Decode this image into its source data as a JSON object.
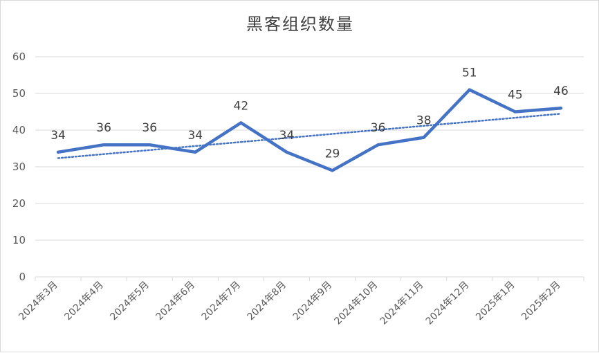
{
  "chart_data": {
    "type": "line",
    "title": "黑客组织数量",
    "xlabel": "",
    "ylabel": "",
    "categories": [
      "2024年3月",
      "2024年4月",
      "2024年5月",
      "2024年6月",
      "2024年7月",
      "2024年8月",
      "2024年9月",
      "2024年10月",
      "2024年11月",
      "2024年12月",
      "2025年1月",
      "2025年2月"
    ],
    "series": [
      {
        "values": [
          34,
          36,
          36,
          34,
          42,
          34,
          29,
          36,
          38,
          51,
          45,
          46
        ],
        "color": "#4472c4"
      }
    ],
    "trendline": {
      "type": "linear",
      "style": "dotted",
      "color": "#4472c4"
    },
    "ylim": [
      0,
      60
    ],
    "yticks": [
      0,
      10,
      20,
      30,
      40,
      50,
      60
    ],
    "grid": true,
    "legend": "none"
  }
}
